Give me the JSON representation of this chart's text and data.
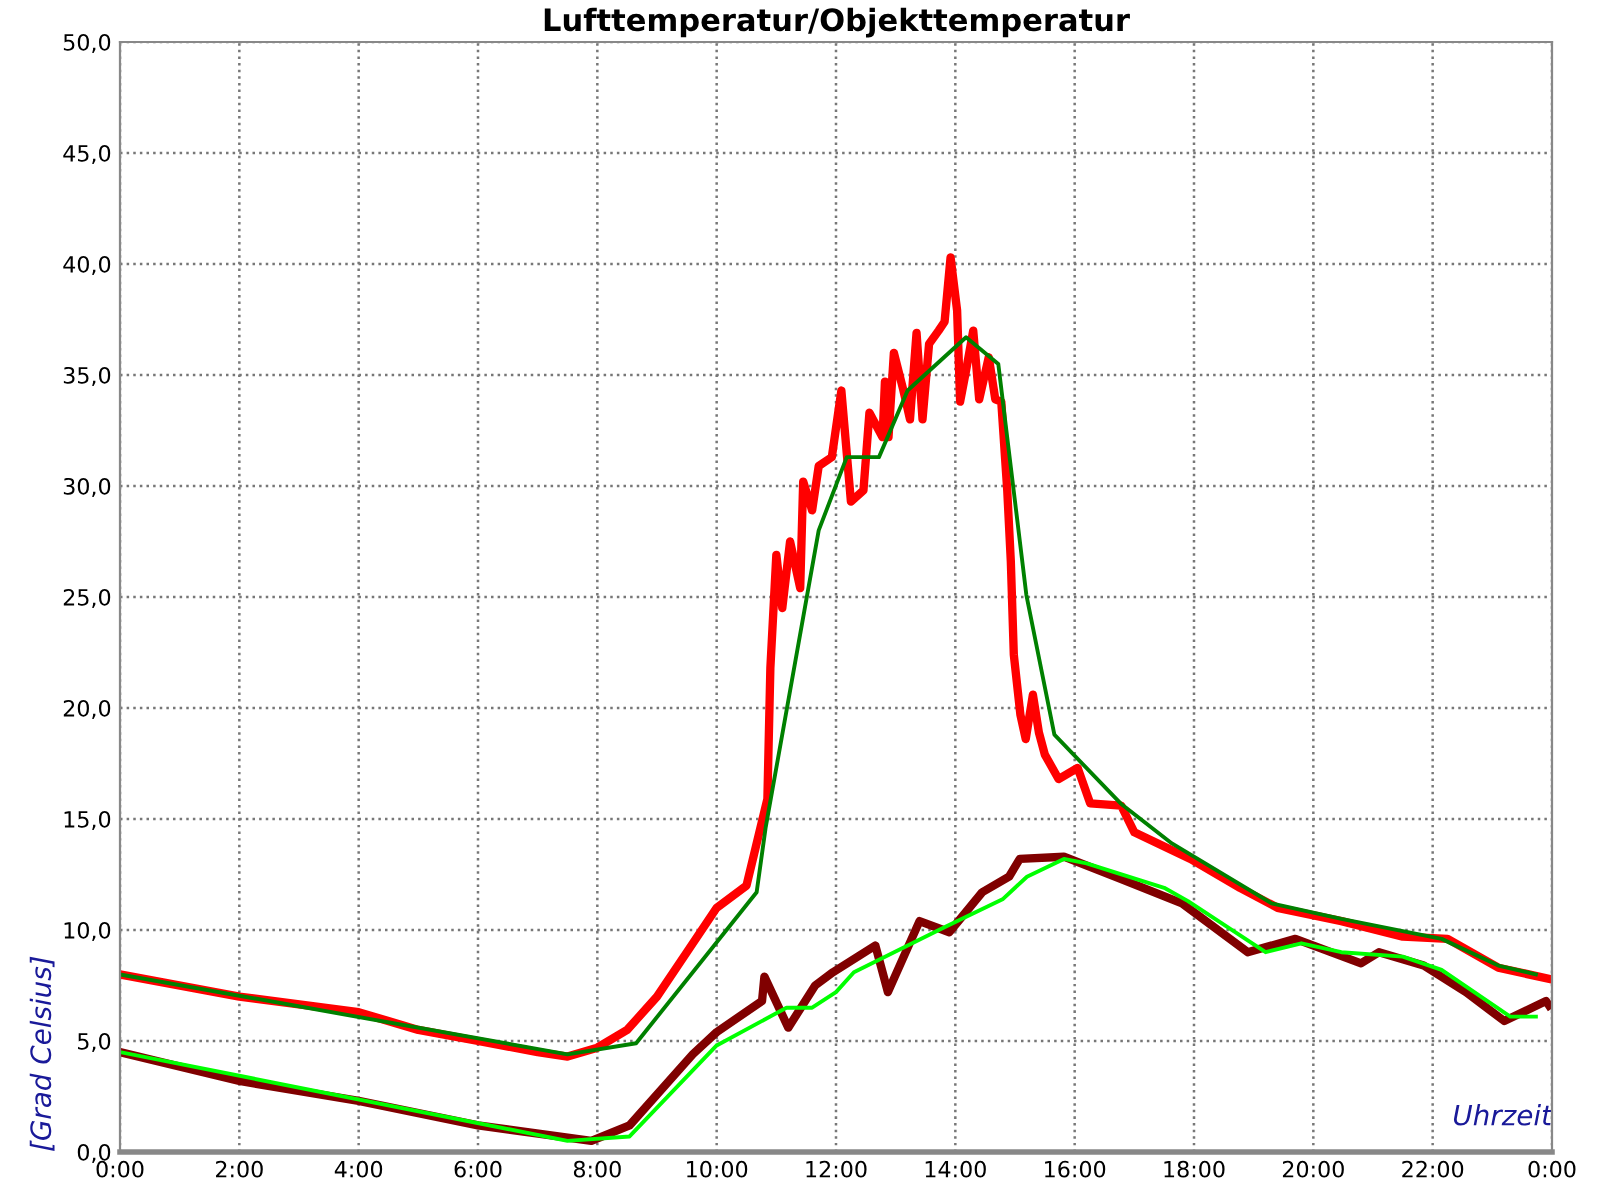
{
  "chart_data": {
    "type": "line",
    "title": "Lufttemperatur/Objekttemperatur",
    "xlabel": "Uhrzeit",
    "ylabel": "[Grad Celsius]",
    "xlim": [
      0,
      24
    ],
    "ylim": [
      0,
      50
    ],
    "xticks": [
      {
        "value": 0,
        "label": "0:00"
      },
      {
        "value": 2,
        "label": "2:00"
      },
      {
        "value": 4,
        "label": "4:00"
      },
      {
        "value": 6,
        "label": "6:00"
      },
      {
        "value": 8,
        "label": "8:00"
      },
      {
        "value": 10,
        "label": "10:00"
      },
      {
        "value": 12,
        "label": "12:00"
      },
      {
        "value": 14,
        "label": "14:00"
      },
      {
        "value": 16,
        "label": "16:00"
      },
      {
        "value": 18,
        "label": "18:00"
      },
      {
        "value": 20,
        "label": "20:00"
      },
      {
        "value": 22,
        "label": "22:00"
      },
      {
        "value": 24,
        "label": "0:00"
      }
    ],
    "yticks": [
      {
        "value": 0,
        "label": "0,0"
      },
      {
        "value": 5,
        "label": "5,0"
      },
      {
        "value": 10,
        "label": "10,0"
      },
      {
        "value": 15,
        "label": "15,0"
      },
      {
        "value": 20,
        "label": "20,0"
      },
      {
        "value": 25,
        "label": "25,0"
      },
      {
        "value": 30,
        "label": "30,0"
      },
      {
        "value": 35,
        "label": "35,0"
      },
      {
        "value": 40,
        "label": "40,0"
      },
      {
        "value": 45,
        "label": "45,0"
      },
      {
        "value": 50,
        "label": "50,0"
      }
    ],
    "grid": true,
    "legend": false,
    "marker": "none",
    "line_style": "solid",
    "series": [
      {
        "color": "#ff0000",
        "x": [
          0,
          2,
          4,
          5,
          6,
          7,
          7.5,
          8,
          8.5,
          9,
          9.5,
          10,
          10.5,
          10.85,
          10.9,
          11.0,
          11.1,
          11.23,
          11.4,
          11.45,
          11.6,
          11.71,
          11.93,
          12.09,
          12.25,
          12.46,
          12.56,
          12.78,
          12.82,
          12.88,
          12.97,
          13.13,
          13.24,
          13.35,
          13.45,
          13.56,
          13.72,
          13.82,
          13.92,
          14.03,
          14.08,
          14.18,
          14.3,
          14.4,
          14.56,
          14.67,
          14.77,
          14.87,
          14.93,
          14.98,
          15.09,
          15.18,
          15.3,
          15.4,
          15.5,
          15.73,
          16.05,
          16.26,
          16.78,
          17.0,
          17.94,
          18.77,
          19.4,
          20.47,
          21.5,
          22.25,
          23.1,
          23.95
        ],
        "values": [
          8.0,
          7.0,
          6.3,
          5.5,
          5.0,
          4.5,
          4.3,
          4.7,
          5.5,
          7.0,
          9.0,
          11.0,
          12.0,
          15.9,
          21.8,
          26.9,
          24.5,
          27.5,
          25.4,
          30.2,
          28.9,
          30.9,
          31.3,
          34.3,
          29.3,
          29.8,
          33.3,
          32.2,
          34.7,
          32.2,
          36.0,
          34.3,
          33.0,
          36.9,
          33.0,
          36.4,
          37.0,
          37.4,
          40.3,
          37.9,
          33.8,
          35.2,
          37.0,
          33.9,
          35.8,
          33.9,
          33.8,
          29.8,
          26.6,
          22.4,
          19.7,
          18.6,
          20.6,
          18.9,
          17.9,
          16.8,
          17.3,
          15.7,
          15.6,
          14.4,
          13.2,
          11.9,
          11.0,
          10.4,
          9.7,
          9.6,
          8.3,
          7.8
        ]
      },
      {
        "color": "#008000",
        "x": [
          0,
          7.5,
          8.65,
          10.67,
          10.82,
          11.71,
          12.18,
          12.72,
          13.2,
          14.18,
          14.72,
          15.19,
          15.66,
          16.77,
          17.63,
          19.3,
          20.47,
          22.15,
          23.1,
          23.73
        ],
        "values": [
          8.0,
          4.4,
          4.9,
          11.7,
          14.6,
          28.0,
          31.3,
          31.3,
          34.3,
          36.7,
          35.5,
          25.1,
          18.8,
          15.7,
          13.9,
          11.2,
          10.5,
          9.6,
          8.4,
          8.0
        ]
      },
      {
        "color": "#800000",
        "x": [
          0,
          2,
          4,
          6,
          7.9,
          8.54,
          9.6,
          10.0,
          10.76,
          10.8,
          11.2,
          11.65,
          11.95,
          12.66,
          12.87,
          13.4,
          13.9,
          14.45,
          14.9,
          15.08,
          15.82,
          16.77,
          17.8,
          18.9,
          19.7,
          20.8,
          21.1,
          21.85,
          22.56,
          23.2,
          23.9,
          23.95
        ],
        "values": [
          4.5,
          3.2,
          2.3,
          1.2,
          0.5,
          1.2,
          4.4,
          5.4,
          6.8,
          7.9,
          5.6,
          7.5,
          8.1,
          9.3,
          7.2,
          10.4,
          9.9,
          11.7,
          12.4,
          13.2,
          13.3,
          12.3,
          11.2,
          9.0,
          9.6,
          8.5,
          9.0,
          8.4,
          7.2,
          5.9,
          6.8,
          6.6
        ]
      },
      {
        "color": "#00ff00",
        "x": [
          0,
          7.5,
          8.54,
          10.0,
          11.17,
          11.6,
          12.0,
          12.3,
          13.8,
          14.8,
          15.2,
          15.82,
          16.2,
          17.5,
          17.9,
          19.2,
          19.8,
          20.47,
          21.5,
          22.15,
          23.3,
          23.73
        ],
        "values": [
          4.5,
          0.5,
          0.7,
          4.8,
          6.5,
          6.5,
          7.2,
          8.1,
          10.1,
          11.4,
          12.4,
          13.2,
          13.0,
          11.9,
          11.3,
          9.0,
          9.4,
          9.0,
          8.8,
          8.2,
          6.1,
          6.1
        ]
      }
    ]
  }
}
